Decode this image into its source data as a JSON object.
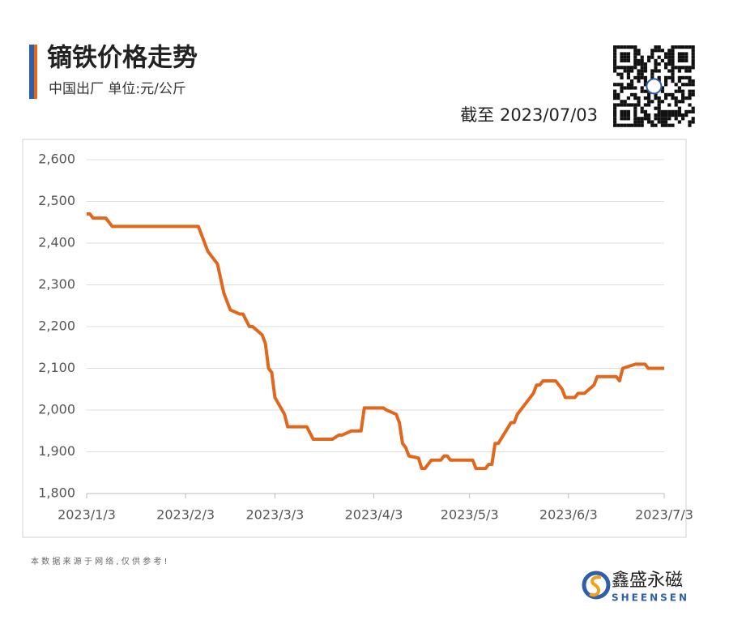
{
  "chart_data": {
    "type": "line",
    "title": "镝铁价格走势",
    "subtitle": "中国出厂  单位:元/公斤",
    "annotation": "截至 2023/07/03",
    "color": "#e0671c",
    "grid": true,
    "x": [
      "2023/1/3",
      "2023/1/4",
      "2023/1/5",
      "2023/1/9",
      "2023/1/11",
      "2023/2/7",
      "2023/2/10",
      "2023/2/13",
      "2023/2/15",
      "2023/2/17",
      "2023/2/20",
      "2023/2/21",
      "2023/2/23",
      "2023/2/24",
      "2023/2/27",
      "2023/2/28",
      "2023/3/1",
      "2023/3/2",
      "2023/3/3",
      "2023/3/6",
      "2023/3/7",
      "2023/3/13",
      "2023/3/15",
      "2023/3/21",
      "2023/3/23",
      "2023/3/24",
      "2023/3/27",
      "2023/3/30",
      "2023/3/31",
      "2023/4/6",
      "2023/4/7",
      "2023/4/10",
      "2023/4/11",
      "2023/4/12",
      "2023/4/13",
      "2023/4/14",
      "2023/4/17",
      "2023/4/18",
      "2023/4/19",
      "2023/4/21",
      "2023/4/24",
      "2023/4/25",
      "2023/4/26",
      "2023/4/27",
      "2023/5/4",
      "2023/5/5",
      "2023/5/8",
      "2023/5/9",
      "2023/5/10",
      "2023/5/11",
      "2023/5/12",
      "2023/5/16",
      "2023/5/17",
      "2023/5/18",
      "2023/5/22",
      "2023/5/23",
      "2023/5/24",
      "2023/5/25",
      "2023/5/26",
      "2023/5/30",
      "2023/5/31",
      "2023/6/1",
      "2023/6/2",
      "2023/6/5",
      "2023/6/6",
      "2023/6/8",
      "2023/6/11",
      "2023/6/12",
      "2023/6/18",
      "2023/6/19",
      "2023/6/20",
      "2023/6/24",
      "2023/6/27",
      "2023/6/28",
      "2023/7/3"
    ],
    "values": [
      2470,
      2470,
      2460,
      2460,
      2440,
      2440,
      2380,
      2350,
      2280,
      2240,
      2230,
      2230,
      2200,
      2200,
      2180,
      2160,
      2100,
      2090,
      2030,
      1990,
      1960,
      1960,
      1930,
      1930,
      1940,
      1940,
      1950,
      1950,
      2005,
      2005,
      2000,
      1990,
      1970,
      1920,
      1910,
      1890,
      1885,
      1860,
      1860,
      1880,
      1880,
      1890,
      1890,
      1880,
      1880,
      1860,
      1860,
      1870,
      1870,
      1920,
      1920,
      1970,
      1970,
      1990,
      2030,
      2040,
      2060,
      2060,
      2070,
      2070,
      2060,
      2050,
      2030,
      2030,
      2040,
      2040,
      2060,
      2080,
      2080,
      2070,
      2100,
      2110,
      2110,
      2100,
      2100
    ],
    "xlim": [
      "2023/1/3",
      "2023/7/3"
    ],
    "xticks": [
      "2023/1/3",
      "2023/2/3",
      "2023/3/3",
      "2023/4/3",
      "2023/5/3",
      "2023/6/3",
      "2023/7/3"
    ],
    "ylim": [
      1800,
      2600
    ],
    "yticks": [
      {
        "value": 1800,
        "label": "1,800"
      },
      {
        "value": 1900,
        "label": "1,900"
      },
      {
        "value": 2000,
        "label": "2,000"
      },
      {
        "value": 2100,
        "label": "2,100"
      },
      {
        "value": 2200,
        "label": "2,200"
      },
      {
        "value": 2300,
        "label": "2,300"
      },
      {
        "value": 2400,
        "label": "2,400"
      },
      {
        "value": 2500,
        "label": "2,500"
      },
      {
        "value": 2600,
        "label": "2,600"
      }
    ]
  },
  "footer": {
    "note": "本 数 据 来 源 于 网 络 , 仅 供 参 考 !",
    "brand": "鑫盛永磁",
    "brand_en": "SHEENSEN"
  }
}
